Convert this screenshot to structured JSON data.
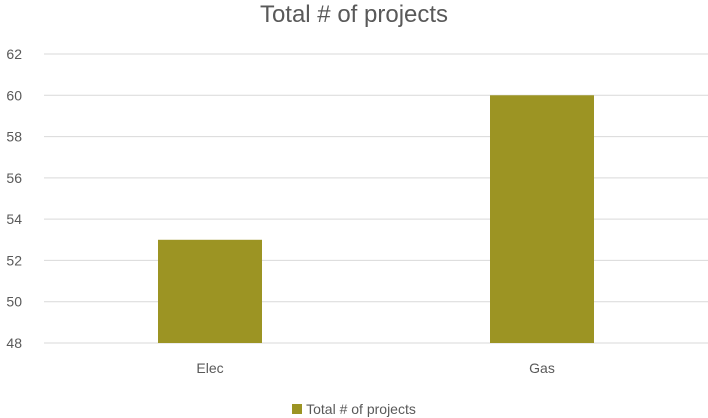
{
  "chart_data": {
    "type": "bar",
    "title": "Total # of projects",
    "categories": [
      "Elec",
      "Gas"
    ],
    "series": [
      {
        "name": "Total # of projects",
        "values": [
          53,
          60
        ],
        "color": "#9c9423"
      }
    ],
    "ylim": [
      48,
      62
    ],
    "yticks": [
      48,
      50,
      52,
      54,
      56,
      58,
      60,
      62
    ],
    "grid": true,
    "legend_position": "bottom",
    "xlabel": "",
    "ylabel": ""
  }
}
